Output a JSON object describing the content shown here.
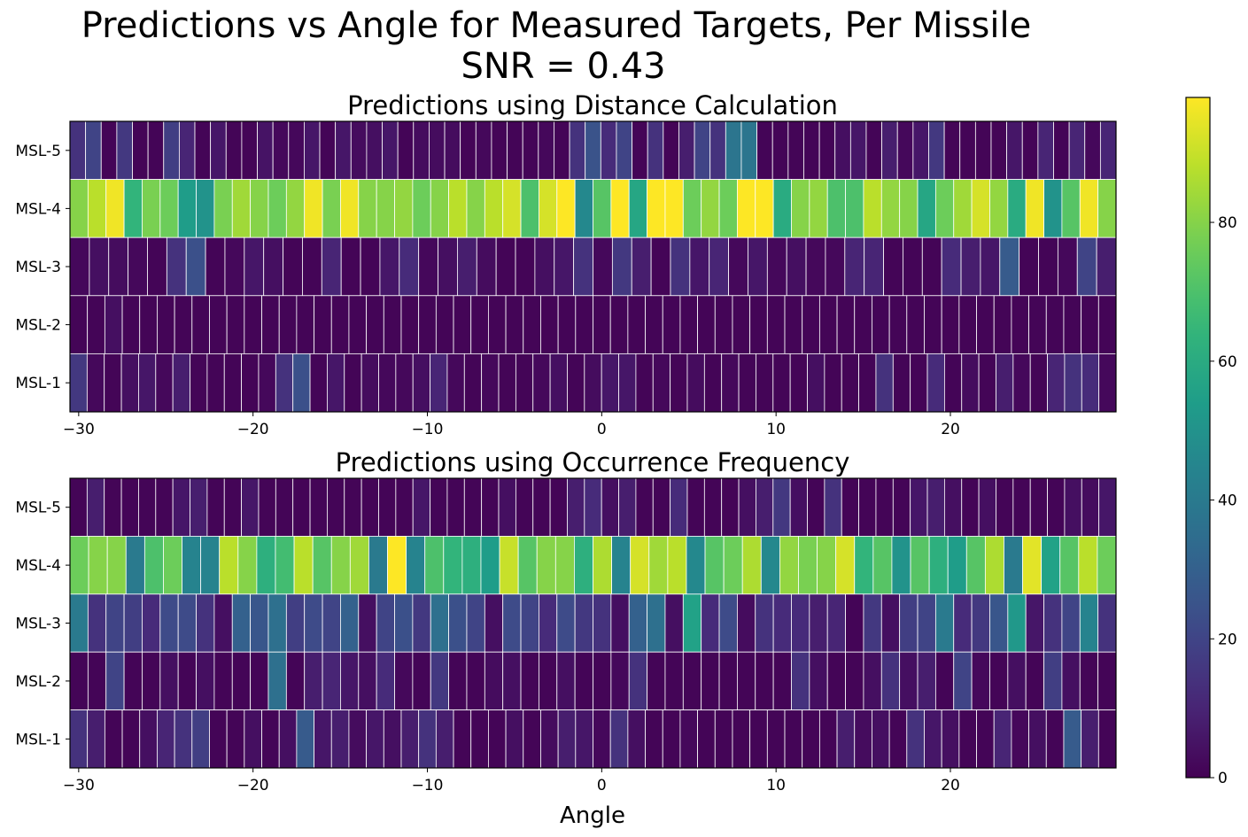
{
  "suptitle": [
    "Predictions vs Angle for Measured Targets, Per Missile",
    "SNR = 0.43"
  ],
  "chart_data": [
    {
      "type": "heatmap",
      "title": "Predictions using Distance Calculation",
      "xlabel": "",
      "ylabel": "",
      "x_start": -30,
      "x_step": 1,
      "xlim": [
        -30.5,
        29.5
      ],
      "xticks": [
        -30,
        -20,
        -10,
        0,
        10,
        20
      ],
      "xtick_labels": [
        "−30",
        "−20",
        "−10",
        "0",
        "10",
        "20"
      ],
      "rows": [
        "MSL-5",
        "MSL-4",
        "MSL-3",
        "MSL-2",
        "MSL-1"
      ],
      "values": [
        [
          14,
          20,
          1,
          16,
          1,
          1,
          18,
          10,
          1,
          6,
          1,
          1,
          5,
          2,
          2,
          6,
          1,
          6,
          3,
          4,
          6,
          1,
          3,
          3,
          3,
          1,
          2,
          1,
          1,
          1,
          2,
          1,
          14,
          25,
          12,
          20,
          1,
          14,
          1,
          8,
          20,
          14,
          38,
          38,
          1,
          1,
          1,
          1,
          1,
          4,
          6,
          1,
          8,
          2,
          6,
          16,
          1,
          1,
          1,
          1,
          6,
          1,
          10,
          1,
          10,
          2,
          10
        ],
        [
          80,
          88,
          96,
          64,
          78,
          76,
          54,
          50,
          78,
          84,
          80,
          76,
          82,
          96,
          78,
          96,
          80,
          80,
          82,
          76,
          80,
          88,
          80,
          88,
          92,
          70,
          92,
          98,
          46,
          72,
          98,
          58,
          98,
          98,
          76,
          82,
          76,
          98,
          98,
          60,
          80,
          82,
          70,
          70,
          88,
          82,
          80,
          58,
          76,
          84,
          92,
          82,
          60,
          96,
          50,
          72,
          96,
          80
        ],
        [
          2,
          4,
          3,
          2,
          1,
          14,
          24,
          1,
          2,
          6,
          4,
          1,
          1,
          10,
          1,
          1,
          6,
          12,
          2,
          4,
          8,
          3,
          1,
          1,
          4,
          6,
          14,
          2,
          16,
          8,
          1,
          14,
          6,
          10,
          2,
          6,
          2,
          4,
          2,
          2,
          10,
          10,
          1,
          1,
          1,
          12,
          8,
          6,
          28,
          1,
          1,
          2,
          20,
          8
        ],
        [
          1,
          1,
          4,
          1,
          1,
          1,
          1,
          1,
          1,
          1,
          1,
          1,
          1,
          1,
          1,
          1,
          1,
          1,
          1,
          1,
          1,
          1,
          1,
          1,
          1,
          1,
          1,
          1,
          1,
          1,
          1,
          1,
          1,
          1,
          1,
          1,
          1,
          1,
          1,
          1,
          1,
          1,
          1,
          1,
          1,
          1,
          1,
          1,
          1,
          1,
          1,
          1,
          1,
          1,
          1,
          1,
          1,
          1,
          1,
          1
        ],
        [
          16,
          2,
          1,
          4,
          6,
          2,
          8,
          1,
          1,
          1,
          1,
          2,
          14,
          24,
          1,
          6,
          1,
          3,
          2,
          2,
          4,
          10,
          2,
          1,
          2,
          1,
          1,
          2,
          4,
          1,
          3,
          6,
          6,
          1,
          2,
          1,
          3,
          1,
          2,
          1,
          1,
          1,
          1,
          4,
          1,
          1,
          1,
          14,
          1,
          1,
          12,
          1,
          3,
          1,
          8,
          2,
          1,
          10,
          14,
          12,
          2
        ]
      ]
    },
    {
      "type": "heatmap",
      "title": "Predictions using Occurrence Frequency",
      "xlabel": "Angle",
      "ylabel": "",
      "x_start": -30,
      "x_step": 1,
      "xlim": [
        -30.5,
        29.5
      ],
      "xticks": [
        -30,
        -20,
        -10,
        0,
        10,
        20
      ],
      "xtick_labels": [
        "−30",
        "−20",
        "−10",
        "0",
        "10",
        "20"
      ],
      "rows": [
        "MSL-5",
        "MSL-4",
        "MSL-3",
        "MSL-2",
        "MSL-1"
      ],
      "values": [
        [
          1,
          8,
          1,
          1,
          1,
          1,
          6,
          8,
          1,
          1,
          6,
          1,
          1,
          1,
          1,
          1,
          1,
          1,
          1,
          1,
          6,
          1,
          1,
          1,
          1,
          4,
          1,
          1,
          1,
          8,
          12,
          4,
          8,
          1,
          1,
          12,
          1,
          1,
          1,
          4,
          8,
          16,
          4,
          1,
          14,
          1,
          1,
          1,
          1,
          6,
          8,
          4,
          1,
          4,
          1,
          1,
          1,
          1,
          4,
          3,
          6
        ],
        [
          76,
          80,
          80,
          40,
          70,
          76,
          44,
          44,
          88,
          80,
          62,
          68,
          88,
          72,
          80,
          84,
          40,
          98,
          44,
          70,
          64,
          62,
          54,
          90,
          72,
          80,
          80,
          62,
          86,
          44,
          92,
          84,
          88,
          46,
          72,
          76,
          86,
          46,
          82,
          78,
          80,
          92,
          64,
          72,
          50,
          72,
          62,
          54,
          72,
          86,
          40,
          94,
          56,
          72,
          88,
          76
        ],
        [
          40,
          14,
          20,
          18,
          12,
          22,
          22,
          14,
          4,
          30,
          26,
          36,
          18,
          22,
          20,
          30,
          4,
          20,
          24,
          16,
          36,
          24,
          20,
          4,
          22,
          20,
          12,
          22,
          16,
          14,
          4,
          30,
          36,
          4,
          56,
          12,
          22,
          3,
          14,
          12,
          12,
          8,
          10,
          1,
          16,
          4,
          18,
          20,
          40,
          12,
          16,
          26,
          52,
          6,
          14,
          20,
          44,
          14
        ],
        [
          1,
          1,
          20,
          1,
          1,
          4,
          1,
          4,
          1,
          1,
          1,
          36,
          1,
          8,
          10,
          6,
          4,
          12,
          2,
          1,
          16,
          1,
          1,
          3,
          4,
          1,
          1,
          4,
          1,
          1,
          2,
          14,
          1,
          1,
          1,
          1,
          1,
          1,
          1,
          1,
          14,
          4,
          1,
          1,
          4,
          14,
          4,
          8,
          1,
          20,
          2,
          1,
          4,
          1,
          18,
          4,
          1,
          1
        ],
        [
          14,
          8,
          1,
          1,
          4,
          10,
          14,
          18,
          1,
          1,
          4,
          1,
          4,
          28,
          6,
          8,
          3,
          6,
          4,
          8,
          14,
          8,
          1,
          1,
          1,
          4,
          1,
          3,
          8,
          6,
          2,
          14,
          4,
          1,
          1,
          2,
          1,
          1,
          1,
          1,
          1,
          1,
          1,
          1,
          8,
          3,
          4,
          1,
          14,
          6,
          4,
          1,
          1,
          10,
          2,
          4,
          1,
          28,
          8,
          1
        ]
      ]
    }
  ],
  "colorbar": {
    "cmap": "viridis",
    "vmin": 0,
    "vmax": 98,
    "ticks": [
      0,
      20,
      40,
      60,
      80
    ],
    "tick_labels": [
      "0",
      "20",
      "40",
      "60",
      "80"
    ]
  }
}
